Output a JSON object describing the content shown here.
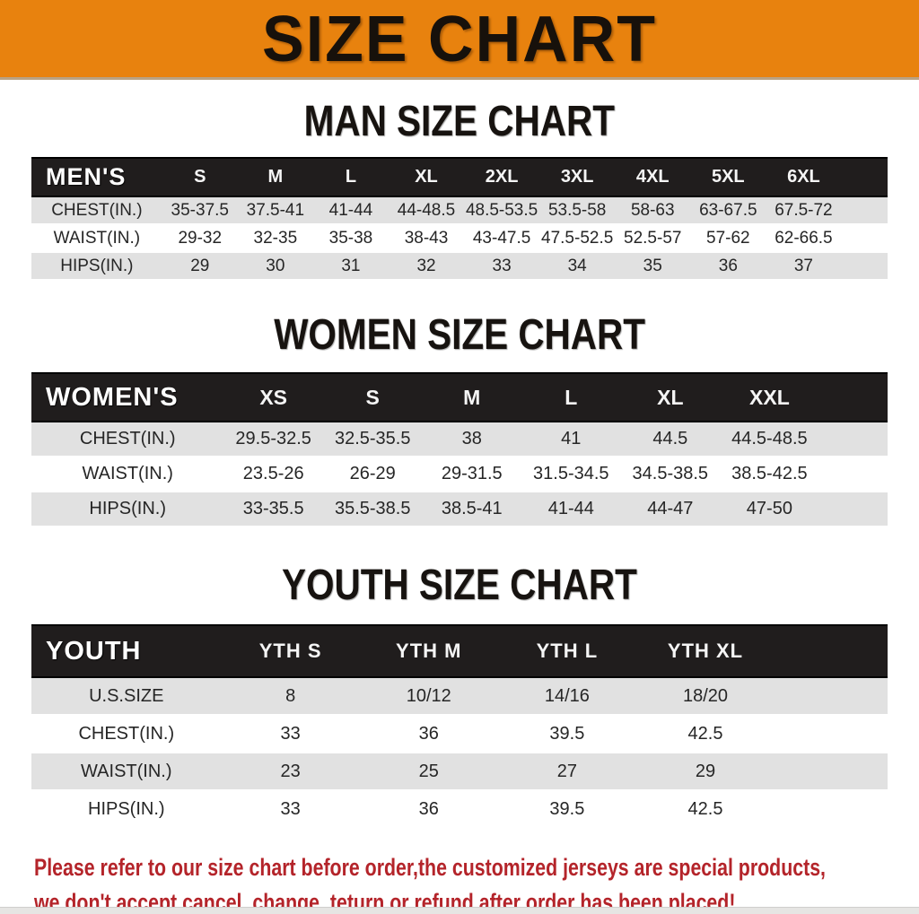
{
  "banner": {
    "title": "SIZE CHART",
    "bg_color": "#e8820e",
    "text_color": "#17110b"
  },
  "sections": {
    "man": {
      "title": "MAN SIZE CHART",
      "table": {
        "header": [
          "MEN'S",
          "S",
          "M",
          "L",
          "XL",
          "2XL",
          "3XL",
          "4XL",
          "5XL",
          "6XL"
        ],
        "rows": [
          {
            "label": "CHEST(IN.)",
            "values": [
              "35-37.5",
              "37.5-41",
              "41-44",
              "44-48.5",
              "48.5-53.5",
              "53.5-58",
              "58-63",
              "63-67.5",
              "67.5-72"
            ]
          },
          {
            "label": "WAIST(IN.)",
            "values": [
              "29-32",
              "32-35",
              "35-38",
              "38-43",
              "43-47.5",
              "47.5-52.5",
              "52.5-57",
              "57-62",
              "62-66.5"
            ]
          },
          {
            "label": "HIPS(IN.)",
            "values": [
              "29",
              "30",
              "31",
              "32",
              "33",
              "34",
              "35",
              "36",
              "37"
            ]
          }
        ]
      }
    },
    "women": {
      "title": "WOMEN SIZE CHART",
      "table": {
        "header": [
          "WOMEN'S",
          "XS",
          "S",
          "M",
          "L",
          "XL",
          "XXL"
        ],
        "rows": [
          {
            "label": "CHEST(IN.)",
            "values": [
              "29.5-32.5",
              "32.5-35.5",
              "38",
              "41",
              "44.5",
              "44.5-48.5"
            ]
          },
          {
            "label": "WAIST(IN.)",
            "values": [
              "23.5-26",
              "26-29",
              "29-31.5",
              "31.5-34.5",
              "34.5-38.5",
              "38.5-42.5"
            ]
          },
          {
            "label": "HIPS(IN.)",
            "values": [
              "33-35.5",
              "35.5-38.5",
              "38.5-41",
              "41-44",
              "44-47",
              "47-50"
            ]
          }
        ]
      }
    },
    "youth": {
      "title": "YOUTH SIZE CHART",
      "table": {
        "header": [
          "YOUTH",
          "YTH S",
          "YTH M",
          "YTH L",
          "YTH XL"
        ],
        "rows": [
          {
            "label": "U.S.SIZE",
            "values": [
              "8",
              "10/12",
              "14/16",
              "18/20"
            ]
          },
          {
            "label": "CHEST(IN.)",
            "values": [
              "33",
              "36",
              "39.5",
              "42.5"
            ]
          },
          {
            "label": "WAIST(IN.)",
            "values": [
              "23",
              "25",
              "27",
              "29"
            ]
          },
          {
            "label": "HIPS(IN.)",
            "values": [
              "33",
              "36",
              "39.5",
              "42.5"
            ]
          }
        ]
      }
    }
  },
  "footer": {
    "line1": "Please refer to our size chart before order,the customized jerseys are special products,",
    "line2": "we don't accept cancel, change, teturn or refund after order has been placed!",
    "text_color": "#b4242a"
  }
}
